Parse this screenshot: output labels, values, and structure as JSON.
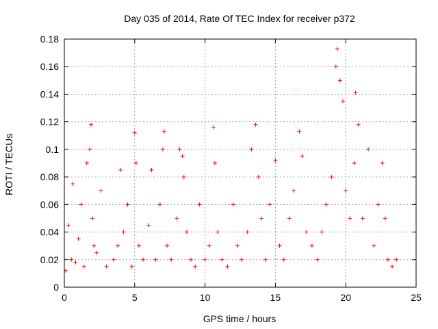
{
  "chart_data": {
    "type": "scatter",
    "title": "Day 035 of 2014, Rate Of TEC Index for receiver p372",
    "xlabel": "GPS time / hours",
    "ylabel": "ROTI / TECUs",
    "xlim": [
      0,
      25
    ],
    "ylim": [
      0,
      0.18
    ],
    "xticks": [
      "0",
      "5",
      "10",
      "15",
      "20",
      "25"
    ],
    "yticks": [
      "0",
      "0.02",
      "0.04",
      "0.06",
      "0.08",
      "0.1",
      "0.12",
      "0.14",
      "0.16",
      "0.18"
    ],
    "grid": true,
    "marker": "+",
    "color": "#ff0000",
    "series": [
      {
        "x": [
          0.1,
          0.3,
          0.5,
          0.6,
          0.8,
          1.0,
          1.2,
          1.4,
          1.6,
          1.8,
          1.9,
          2.0,
          2.1,
          2.3,
          2.6,
          3.0,
          3.5,
          3.8,
          4.0,
          4.2,
          4.5,
          4.8,
          5.0,
          5.1,
          5.3,
          5.6,
          6.0,
          6.2,
          6.5,
          6.8,
          7.0,
          7.1,
          7.3,
          7.6,
          8.0,
          8.2,
          8.4,
          8.5,
          8.7,
          9.0,
          9.3,
          9.6,
          10.0,
          10.3,
          10.6,
          10.7,
          10.9,
          11.2,
          11.6,
          12.0,
          12.3,
          12.6,
          13.0,
          13.3,
          13.6,
          13.8,
          14.0,
          14.3,
          14.6,
          15.0,
          15.3,
          15.6,
          16.0,
          16.3,
          16.7,
          16.9,
          17.2,
          17.6,
          18.0,
          18.3,
          18.6,
          19.0,
          19.3,
          19.4,
          19.6,
          19.8,
          20.0,
          20.3,
          20.6,
          20.7,
          20.9,
          21.2,
          21.6,
          22.0,
          22.3,
          22.6,
          22.8,
          23.0,
          23.3,
          23.6
        ],
        "y": [
          0.012,
          0.045,
          0.02,
          0.075,
          0.018,
          0.035,
          0.06,
          0.015,
          0.09,
          0.1,
          0.118,
          0.05,
          0.03,
          0.025,
          0.07,
          0.015,
          0.02,
          0.03,
          0.085,
          0.04,
          0.06,
          0.015,
          0.112,
          0.09,
          0.03,
          0.02,
          0.045,
          0.085,
          0.02,
          0.06,
          0.1,
          0.113,
          0.03,
          0.02,
          0.05,
          0.1,
          0.095,
          0.08,
          0.04,
          0.02,
          0.015,
          0.06,
          0.02,
          0.03,
          0.116,
          0.09,
          0.04,
          0.02,
          0.015,
          0.06,
          0.03,
          0.02,
          0.04,
          0.1,
          0.118,
          0.08,
          0.05,
          0.02,
          0.06,
          0.092,
          0.03,
          0.02,
          0.05,
          0.07,
          0.113,
          0.095,
          0.04,
          0.03,
          0.02,
          0.04,
          0.06,
          0.08,
          0.16,
          0.173,
          0.15,
          0.135,
          0.07,
          0.05,
          0.09,
          0.141,
          0.118,
          0.05,
          0.1,
          0.03,
          0.06,
          0.09,
          0.05,
          0.02,
          0.015,
          0.02
        ]
      }
    ]
  }
}
